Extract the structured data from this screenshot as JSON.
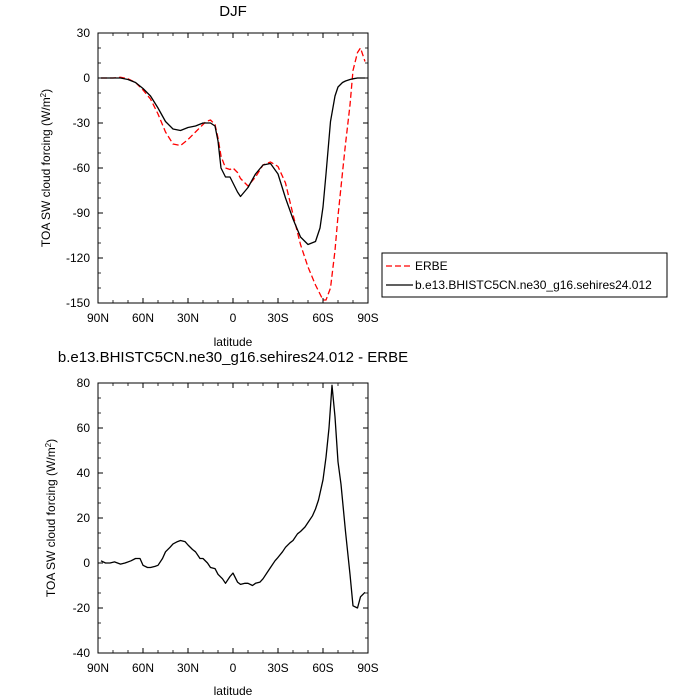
{
  "chart_data": [
    {
      "type": "line",
      "title": "DJF",
      "xlabel": "latitude",
      "ylabel": "TOA SW cloud forcing (W/m",
      "ylabel_sup": "2",
      "ylabel_tail": ")",
      "xlim": [
        90,
        -90
      ],
      "ylim": [
        -150,
        30
      ],
      "x_ticks": [
        90,
        60,
        30,
        0,
        -30,
        -60,
        -90
      ],
      "x_tick_labels": [
        "90N",
        "60N",
        "30N",
        "0",
        "30S",
        "60S",
        "90S"
      ],
      "y_ticks": [
        30,
        0,
        -30,
        -60,
        -90,
        -120,
        -150
      ],
      "y_tick_labels": [
        "30",
        "0",
        "-30",
        "-60",
        "-90",
        "-120",
        "-150"
      ],
      "legend": {
        "placement": "right",
        "entries": [
          {
            "label": "ERBE",
            "series": 0
          },
          {
            "label": "b.e13.BHISTC5CN.ne30_g16.sehires24.012",
            "series": 1
          }
        ]
      },
      "series": [
        {
          "name": "ERBE",
          "color": "#ff0000",
          "dash": "dashed",
          "x": [
            88,
            80,
            75,
            70,
            65,
            60,
            55,
            50,
            45,
            40,
            35,
            30,
            25,
            20,
            18,
            15,
            12,
            10,
            8,
            5,
            2,
            0,
            -3,
            -5,
            -10,
            -15,
            -20,
            -25,
            -30,
            -35,
            -40,
            -45,
            -50,
            -55,
            -58,
            -60,
            -62,
            -65,
            -68,
            -70,
            -73,
            -75,
            -78,
            -80,
            -83,
            -85,
            -88
          ],
          "y": [
            0,
            0,
            0.5,
            -0.5,
            -3,
            -8,
            -14,
            -24,
            -36,
            -44,
            -45,
            -41,
            -36,
            -31,
            -29,
            -28,
            -31,
            -40,
            -52,
            -60,
            -61,
            -60,
            -63,
            -67,
            -72,
            -66,
            -58,
            -56,
            -59,
            -70,
            -91,
            -111,
            -126,
            -138,
            -144,
            -148,
            -148,
            -140,
            -115,
            -92,
            -63,
            -44,
            -18,
            5,
            17,
            20,
            11
          ]
        },
        {
          "name": "b.e13.BHISTC5CN.ne30_g16.sehires24.012",
          "color": "#000000",
          "dash": "solid",
          "x": [
            88,
            80,
            75,
            70,
            65,
            60,
            55,
            50,
            45,
            40,
            35,
            30,
            25,
            20,
            18,
            15,
            12,
            10,
            8,
            5,
            2,
            0,
            -3,
            -5,
            -10,
            -15,
            -20,
            -25,
            -30,
            -35,
            -40,
            -45,
            -50,
            -55,
            -58,
            -60,
            -62,
            -65,
            -68,
            -70,
            -73,
            -75,
            -78,
            -80,
            -83,
            -85,
            -88
          ],
          "y": [
            0,
            0,
            0,
            -1,
            -3,
            -7,
            -12,
            -20,
            -29,
            -34,
            -35,
            -33,
            -32,
            -30,
            -30,
            -30,
            -32,
            -42,
            -60,
            -66,
            -66,
            -70,
            -76,
            -79,
            -73,
            -64,
            -58,
            -57,
            -64,
            -80,
            -94,
            -106,
            -111,
            -109,
            -100,
            -86,
            -64,
            -29,
            -12,
            -6,
            -3,
            -2,
            -1,
            -0.5,
            0,
            0,
            0
          ]
        }
      ]
    },
    {
      "type": "line",
      "title": "b.e13.BHISTC5CN.ne30_g16.sehires24.012 - ERBE",
      "xlabel": "latitude",
      "ylabel": "TOA SW cloud forcing (W/m",
      "ylabel_sup": "2",
      "ylabel_tail": ")",
      "xlim": [
        90,
        -90
      ],
      "ylim": [
        -40,
        80
      ],
      "x_ticks": [
        90,
        60,
        30,
        0,
        -30,
        -60,
        -90
      ],
      "x_tick_labels": [
        "90N",
        "60N",
        "30N",
        "0",
        "30S",
        "60S",
        "90S"
      ],
      "y_ticks": [
        80,
        60,
        40,
        20,
        0,
        -20,
        -40
      ],
      "y_tick_labels": [
        "80",
        "60",
        "40",
        "20",
        "0",
        "-20",
        "-40"
      ],
      "series": [
        {
          "color": "#000000",
          "dash": "solid",
          "x": [
            88,
            85,
            82,
            79,
            75,
            72,
            68,
            65,
            62,
            60,
            57,
            55,
            52,
            50,
            47,
            45,
            42,
            40,
            37,
            35,
            32,
            30,
            27,
            25,
            22,
            20,
            17,
            15,
            12,
            10,
            7,
            5,
            2,
            0,
            -3,
            -5,
            -8,
            -10,
            -13,
            -15,
            -18,
            -20,
            -23,
            -25,
            -28,
            -30,
            -33,
            -35,
            -38,
            -40,
            -43,
            -45,
            -48,
            -50,
            -53,
            -55,
            -57,
            -60,
            -62,
            -64,
            -66,
            -68,
            -70,
            -72,
            -75,
            -78,
            -80,
            -83,
            -85,
            -88
          ],
          "y": [
            1,
            0,
            0,
            0.5,
            -0.5,
            0,
            1,
            2,
            2,
            -1,
            -2,
            -2,
            -1.5,
            -1,
            2,
            5,
            7,
            8.5,
            9.5,
            10,
            9.5,
            8,
            6,
            5,
            2,
            2,
            0,
            -2,
            -2.5,
            -5,
            -7,
            -9,
            -6,
            -4.5,
            -8.5,
            -9.5,
            -9,
            -9,
            -10,
            -9,
            -8.5,
            -7,
            -4,
            -2,
            1,
            2.5,
            5,
            7,
            9,
            10,
            13,
            14,
            16,
            18,
            21,
            24,
            28,
            37,
            47,
            60,
            79,
            65,
            45,
            35,
            14,
            -5,
            -19,
            -20,
            -15,
            -13
          ]
        }
      ]
    }
  ]
}
